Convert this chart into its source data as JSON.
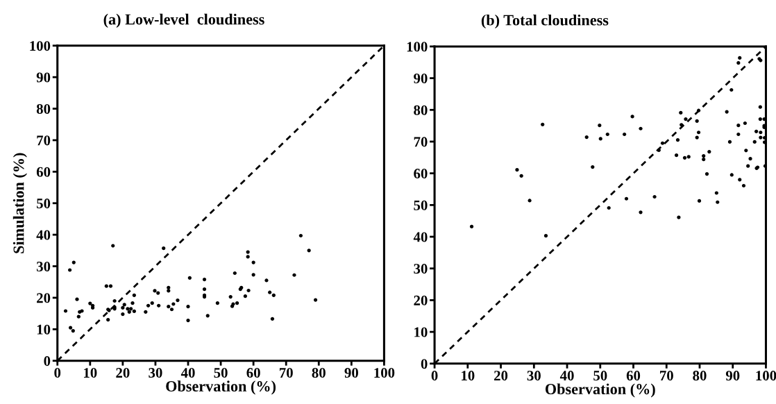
{
  "chart_data": [
    {
      "type": "scatter",
      "title": "(a) Low-level  cloudiness",
      "xlabel": "Observation (%)",
      "ylabel": "Simulation (%)",
      "xlim": [
        0,
        100
      ],
      "ylim": [
        0,
        100
      ],
      "xticks": [
        0,
        10,
        20,
        30,
        40,
        50,
        60,
        70,
        80,
        90,
        100
      ],
      "yticks": [
        0,
        10,
        20,
        30,
        40,
        50,
        60,
        70,
        80,
        90,
        100
      ],
      "marker": "circle",
      "series": [
        {
          "color": "#000000",
          "x": [
            2.5,
            3.8,
            5,
            4,
            4.8,
            6,
            6.5,
            6.8,
            7.5,
            10,
            10.8,
            10.8,
            15,
            16.3,
            15.5,
            15.8,
            15.5,
            17,
            17.5,
            17.5,
            17.5,
            20,
            20,
            20.5,
            21.5,
            22,
            22.5,
            23,
            23.5,
            23.5,
            27,
            27.8,
            29,
            29.8,
            30.8,
            31,
            32.5,
            34,
            34,
            34,
            35,
            35.5,
            36.8,
            40,
            40,
            40.5,
            45,
            45,
            45,
            45,
            46,
            49,
            53,
            53.5,
            53.8,
            54.3,
            55,
            56,
            56.3,
            57.5,
            58.3,
            58.3,
            58.5,
            60,
            60,
            64,
            65,
            65.8,
            66.2,
            72.5,
            74.5,
            77,
            79
          ],
          "values": [
            15.8,
            28.8,
            31.2,
            10.5,
            9.5,
            19.5,
            14,
            15.5,
            15.8,
            18.2,
            17.5,
            16.8,
            23.7,
            23.7,
            16.3,
            16,
            13,
            36.5,
            19,
            17,
            16.5,
            14.8,
            16.8,
            17.8,
            16.5,
            15.5,
            16.5,
            18.3,
            20.8,
            15.7,
            15.5,
            17.5,
            18.3,
            22.2,
            21.5,
            17.5,
            35.7,
            17.2,
            23.2,
            22.2,
            16.3,
            18,
            19.2,
            12.8,
            17.2,
            26.3,
            25.8,
            22.7,
            20.8,
            20.3,
            14.3,
            18.3,
            20.3,
            17.3,
            18,
            27.8,
            18.3,
            22.7,
            23.2,
            20.5,
            34.5,
            33,
            22.3,
            31.2,
            27.3,
            25.5,
            21.7,
            13.3,
            20.8,
            27.2,
            39.7,
            35,
            19.3
          ]
        },
        {
          "type": "line",
          "color": "#000000",
          "line_style": "dashed",
          "marker": "none",
          "x": [
            0,
            100
          ],
          "values": [
            0,
            100
          ]
        }
      ]
    },
    {
      "type": "scatter",
      "title": "(b) Total cloudiness",
      "xlabel": "Observation (%)",
      "xlim": [
        0,
        100
      ],
      "ylim": [
        0,
        100
      ],
      "xticks": [
        0,
        10,
        20,
        30,
        40,
        50,
        60,
        70,
        80,
        90,
        100
      ],
      "yticks": [
        0,
        10,
        20,
        30,
        40,
        50,
        60,
        70,
        80,
        90,
        100
      ],
      "marker": "circle",
      "series": [
        {
          "color": "#000000",
          "x": [
            11.2,
            32.6,
            24.9,
            26.2,
            28.7,
            45.9,
            47.7,
            49.8,
            50.1,
            52.2,
            52.6,
            57.3,
            57.9,
            59.7,
            62.2,
            62.2,
            66.4,
            67.7,
            68.8,
            73.0,
            73.4,
            73.7,
            74.3,
            74.5,
            75.5,
            75.8,
            76.7,
            79.2,
            79.2,
            79.7,
            79.7,
            79.9,
            81.2,
            81.2,
            82.2,
            82.9,
            85.1,
            85.4,
            88.2,
            89.1,
            89.6,
            89.7,
            91.7,
            91.7,
            91.7,
            92.1,
            92.1,
            93.3,
            93.7,
            94.0,
            94.6,
            95.3,
            96.6,
            97.1,
            97.2,
            97.5,
            98.0,
            98.4,
            98.3,
            98.3,
            98.4,
            98.4,
            99.5,
            99.5,
            99.5,
            99.6,
            99.6,
            99.8,
            33.6
          ],
          "values": [
            43.2,
            75.4,
            61.1,
            59.2,
            51.4,
            71.4,
            62.0,
            75.1,
            70.9,
            72.3,
            49.1,
            72.3,
            52.0,
            77.9,
            74.1,
            47.7,
            52.6,
            67.3,
            69.5,
            65.7,
            70.5,
            46.1,
            79.1,
            75.3,
            64.9,
            77.1,
            65.2,
            76.5,
            71.3,
            79.8,
            72.9,
            51.3,
            64.4,
            65.5,
            59.8,
            66.8,
            53.8,
            50.9,
            79.4,
            69.9,
            86.3,
            59.5,
            75.1,
            72.3,
            94.8,
            96.4,
            58.0,
            56.1,
            75.8,
            67.2,
            62.3,
            64.6,
            69.9,
            73.2,
            61.6,
            61.9,
            96.1,
            95.6,
            80.9,
            77.1,
            72.9,
            71.3,
            77.1,
            75.0,
            74.5,
            69.8,
            71.2,
            62.3,
            40.3
          ]
        },
        {
          "type": "line",
          "color": "#000000",
          "line_style": "dashed",
          "marker": "none",
          "x": [
            0,
            100
          ],
          "values": [
            0,
            100
          ]
        }
      ]
    }
  ]
}
